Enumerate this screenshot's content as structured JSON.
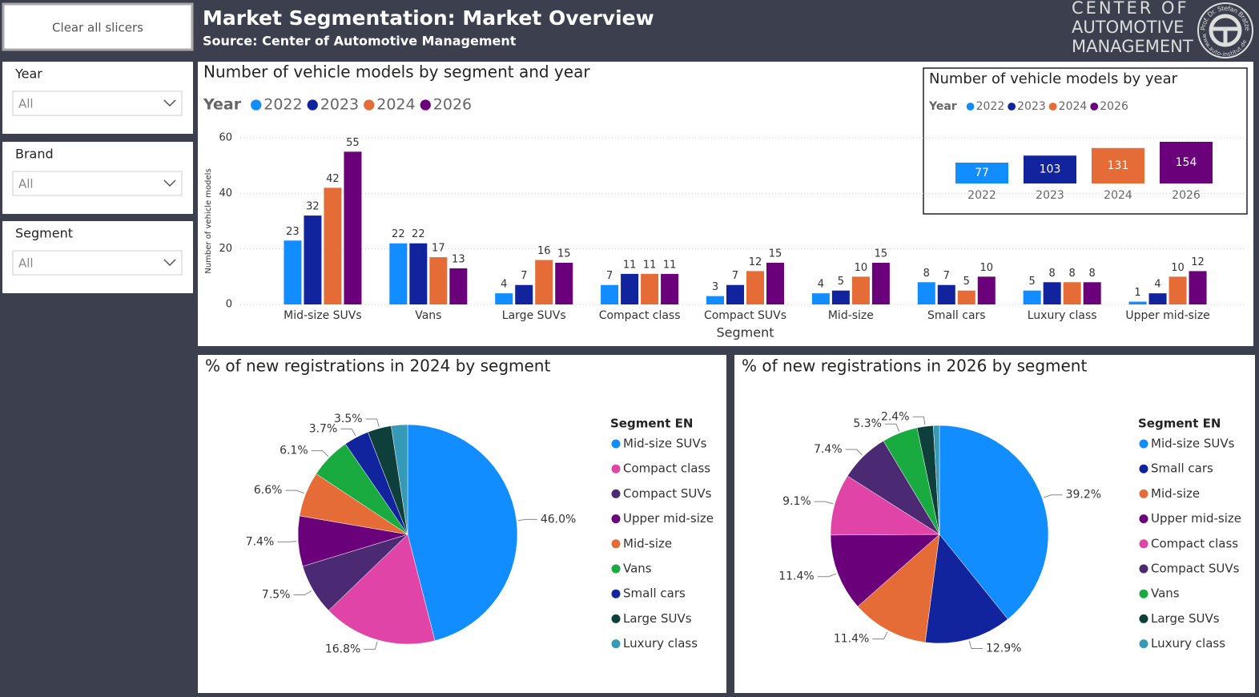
{
  "header": {
    "button": "Clear all slicers",
    "title": "Market Segmentation: Market Overview",
    "subtitle": "Source: Center of Automotive Management",
    "logo": {
      "lines": [
        "CENTER OF",
        "AUTOMOTIVE",
        "MANAGEMENT"
      ],
      "ring_top": "Prof. Dr. Stefan Bratzel",
      "ring_bottom": "www.auto-institut.de"
    }
  },
  "slicers": [
    {
      "label": "Year",
      "value": "All"
    },
    {
      "label": "Brand",
      "value": "All"
    },
    {
      "label": "Segment",
      "value": "All"
    }
  ],
  "chart_data": [
    {
      "type": "bar",
      "title": "Number of vehicle models by segment and year",
      "legend_title": "Year",
      "x_label": "Segment",
      "y_label": "Number of vehicle models",
      "categories": [
        "Mid-size SUVs",
        "Vans",
        "Large SUVs",
        "Compact class",
        "Compact SUVs",
        "Mid-size",
        "Small cars",
        "Luxury class",
        "Upper mid-size"
      ],
      "series": [
        {
          "name": "2022",
          "color": "#118DFF",
          "values": [
            23,
            22,
            4,
            7,
            3,
            4,
            8,
            5,
            1
          ]
        },
        {
          "name": "2023",
          "color": "#12239E",
          "values": [
            32,
            22,
            7,
            11,
            7,
            5,
            7,
            8,
            4
          ]
        },
        {
          "name": "2024",
          "color": "#E66C37",
          "values": [
            42,
            17,
            16,
            11,
            12,
            10,
            5,
            8,
            10
          ]
        },
        {
          "name": "2026",
          "color": "#6B007B",
          "values": [
            55,
            13,
            15,
            11,
            15,
            15,
            10,
            8,
            12
          ]
        }
      ],
      "ylim": [
        0,
        60
      ],
      "yticks": [
        0,
        20,
        40,
        60
      ],
      "grid": true
    },
    {
      "type": "bar",
      "title": "Number of vehicle models by year",
      "legend_title": "Year",
      "categories": [
        "2022",
        "2023",
        "2024",
        "2026"
      ],
      "values": [
        77,
        103,
        131,
        154
      ],
      "colors": [
        "#118DFF",
        "#12239E",
        "#E66C37",
        "#6B007B"
      ]
    },
    {
      "type": "pie",
      "title": "% of new registrations in 2024 by segment",
      "legend_title": "Segment EN",
      "categories": [
        "Mid-size SUVs",
        "Compact class",
        "Compact SUVs",
        "Upper mid-size",
        "Mid-size",
        "Vans",
        "Small cars",
        "Large SUVs",
        "Luxury class"
      ],
      "values": [
        46.0,
        16.8,
        7.5,
        7.4,
        6.6,
        6.1,
        3.7,
        3.5,
        2.4
      ],
      "value_labels": [
        "46.0%",
        "16.8%",
        "7.5%",
        "7.4%",
        "6.6%",
        "6.1%",
        "3.7%",
        "3.5%",
        null
      ],
      "colors": [
        "#118DFF",
        "#E044A7",
        "#4B2A73",
        "#6B007B",
        "#E66C37",
        "#1AAB40",
        "#12239E",
        "#0F3F3A",
        "#3599B8"
      ]
    },
    {
      "type": "pie",
      "title": "% of new registrations in 2026 by segment",
      "legend_title": "Segment EN",
      "categories": [
        "Mid-size SUVs",
        "Small cars",
        "Mid-size",
        "Upper mid-size",
        "Compact class",
        "Compact SUVs",
        "Vans",
        "Large SUVs",
        "Luxury class"
      ],
      "values": [
        39.2,
        12.9,
        11.4,
        11.4,
        9.1,
        7.4,
        5.3,
        2.4,
        0.9
      ],
      "value_labels": [
        "39.2%",
        "12.9%",
        "11.4%",
        "11.4%",
        "9.1%",
        "7.4%",
        "5.3%",
        "2.4%",
        null
      ],
      "colors": [
        "#118DFF",
        "#12239E",
        "#E66C37",
        "#6B007B",
        "#E044A7",
        "#4B2A73",
        "#1AAB40",
        "#0F3F3A",
        "#3599B8"
      ]
    }
  ]
}
